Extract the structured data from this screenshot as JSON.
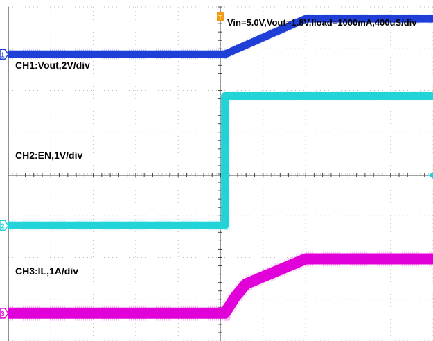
{
  "chart_data": {
    "type": "line",
    "title": "Vin=5.0V,Vout=1.8V,Iload=1000mA,400uS/div",
    "time_per_div_us": 400,
    "grid": true,
    "x_divisions": 10,
    "y_divisions": 8,
    "series": [
      {
        "name": "CH1:Vout,2V/div",
        "marker": "1",
        "color": "#1f3fd6",
        "x_div": [
          0,
          5.1,
          7.0,
          10
        ],
        "y_div": [
          2.9,
          2.9,
          3.75,
          3.75
        ]
      },
      {
        "name": "CH2:EN,1V/div",
        "marker": "2",
        "color": "#22d3d8",
        "x_div": [
          0,
          5.1,
          5.1,
          10
        ],
        "y_div": [
          -1.2,
          -1.2,
          1.9,
          1.9
        ]
      },
      {
        "name": "CH3:IL,1A/div",
        "marker": "3",
        "color": "#e100d9",
        "x_div": [
          0,
          5.1,
          5.35,
          5.6,
          7.0,
          10
        ],
        "y_div": [
          -3.3,
          -3.3,
          -2.9,
          -2.6,
          -2.0,
          -2.0
        ]
      }
    ],
    "trigger_marker": "T"
  }
}
